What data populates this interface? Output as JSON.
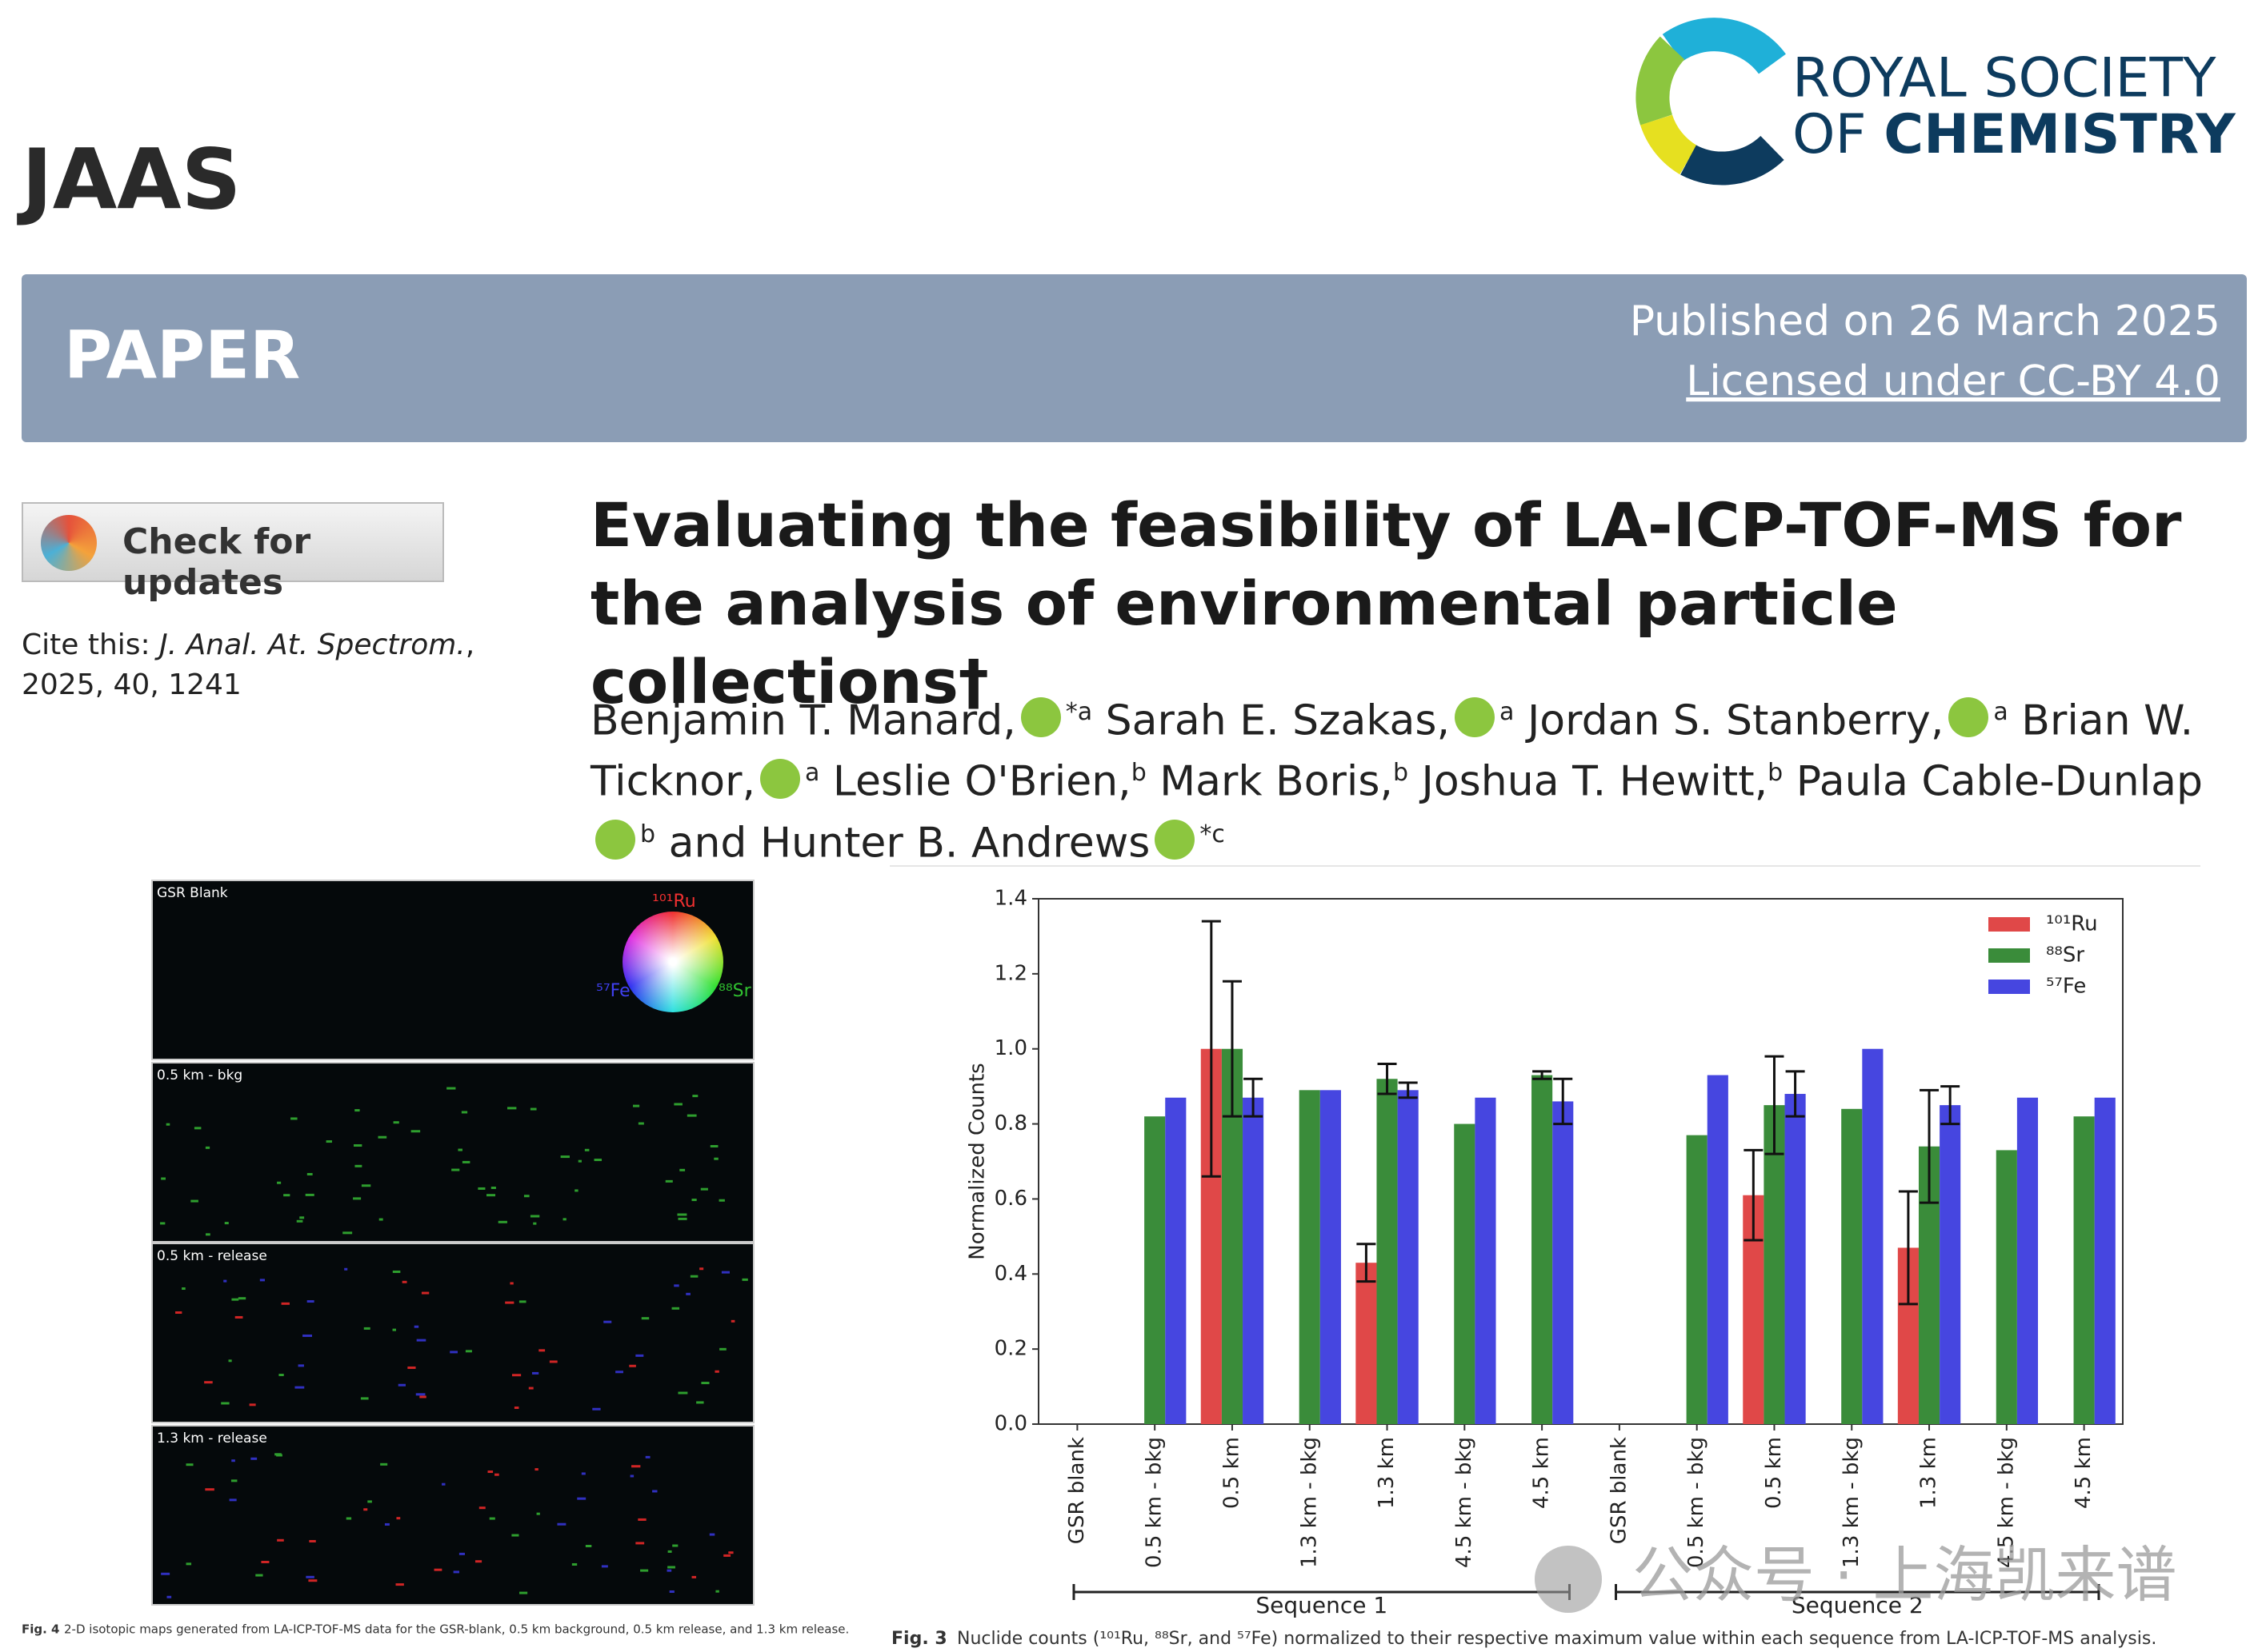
{
  "header": {
    "journal": "JAAS",
    "publisher_line1": "ROYAL SOCIETY",
    "publisher_line2_a": "OF ",
    "publisher_line2_b": "CHEMISTRY"
  },
  "banner": {
    "type": "PAPER",
    "published": "Published on 26 March 2025",
    "license": "Licensed under CC-BY 4.0"
  },
  "check_updates": "Check for updates",
  "cite": {
    "label": "Cite this:",
    "journal": "J. Anal. At. Spectrom.",
    "details": ", 2025, 40, 1241"
  },
  "article": {
    "title": "Evaluating the feasibility of LA-ICP-TOF-MS for the analysis of environmental particle collections†",
    "authors": [
      {
        "name": "Benjamin T. Manard,",
        "orcid": true,
        "mark": "*a"
      },
      {
        "name": "Sarah E. Szakas,",
        "orcid": true,
        "mark": "a"
      },
      {
        "name": "Jordan S. Stanberry,",
        "orcid": true,
        "mark": "a"
      },
      {
        "name": "Brian W. Ticknor,",
        "orcid": true,
        "mark": "a"
      },
      {
        "name": "Leslie O'Brien,",
        "orcid": false,
        "mark": "b"
      },
      {
        "name": "Mark Boris,",
        "orcid": false,
        "mark": "b"
      },
      {
        "name": "Joshua T. Hewitt,",
        "orcid": false,
        "mark": "b"
      },
      {
        "name": "Paula Cable-Dunlap",
        "orcid": true,
        "mark": "b"
      },
      {
        "name": "and Hunter B. Andrews",
        "orcid": true,
        "mark": "*c"
      }
    ]
  },
  "figure4": {
    "panels": [
      "GSR Blank",
      "0.5 km - bkg",
      "0.5 km - release",
      "1.3 km - release"
    ],
    "wheel_labels": [
      "¹⁰¹Ru",
      "⁸⁸Sr",
      "⁵⁷Fe"
    ],
    "caption_label": "Fig. 4",
    "caption": "2-D isotopic maps generated from LA-ICP-TOF-MS data for the GSR-blank, 0.5 km background, 0.5 km release, and 1.3 km release."
  },
  "figure3": {
    "caption_label": "Fig. 3",
    "caption": "Nuclide counts (¹⁰¹Ru, ⁸⁸Sr, and ⁵⁷Fe) normalized to their respective maximum value within each sequence from LA-ICP-TOF-MS analysis."
  },
  "watermark": "公众号 · 上海凯来谱",
  "chart_data": {
    "type": "bar",
    "y_label": "Normalized Counts",
    "categories": [
      "GSR blank",
      "0.5 km - bkg",
      "0.5 km",
      "1.3 km - bkg",
      "1.3 km",
      "4.5 km - bkg",
      "4.5 km",
      "GSR blank",
      "0.5 km - bkg",
      "0.5 km",
      "1.3 km - bkg",
      "1.3 km",
      "4.5 km - bkg",
      "4.5 km"
    ],
    "group_labels": [
      "Sequence 1",
      "Sequence 2"
    ],
    "series": [
      {
        "name": "¹⁰¹Ru",
        "color": "#e04848",
        "values": [
          0,
          0,
          1.0,
          0,
          0.43,
          0,
          0,
          0,
          0,
          0.61,
          0,
          0.47,
          0,
          0
        ],
        "errors": [
          null,
          null,
          0.34,
          null,
          0.05,
          null,
          null,
          null,
          null,
          0.12,
          null,
          0.15,
          null,
          null
        ]
      },
      {
        "name": "⁸⁸Sr",
        "color": "#3a8c3a",
        "values": [
          0,
          0.82,
          1.0,
          0.89,
          0.92,
          0.8,
          0.93,
          0,
          0.77,
          0.85,
          0.84,
          0.74,
          0.73,
          0.82
        ],
        "errors": [
          null,
          null,
          0.18,
          null,
          0.04,
          null,
          0.01,
          null,
          null,
          0.13,
          null,
          0.15,
          null,
          null
        ]
      },
      {
        "name": "⁵⁷Fe",
        "color": "#4646e0",
        "values": [
          0,
          0.87,
          0.87,
          0.89,
          0.89,
          0.87,
          0.86,
          0,
          0.93,
          0.88,
          1.0,
          0.85,
          0.87,
          0.87
        ],
        "errors": [
          null,
          null,
          0.05,
          null,
          0.02,
          null,
          0.06,
          null,
          null,
          0.06,
          null,
          0.05,
          null,
          null
        ]
      }
    ],
    "ylim": [
      0,
      1.4
    ],
    "yticks": [
      {
        "value": 0,
        "label": "0.0"
      },
      0.2,
      0.4,
      0.6,
      0.8,
      {
        "value": 1,
        "label": "1.0"
      },
      1.2,
      1.4
    ],
    "legend": "upper-right"
  }
}
